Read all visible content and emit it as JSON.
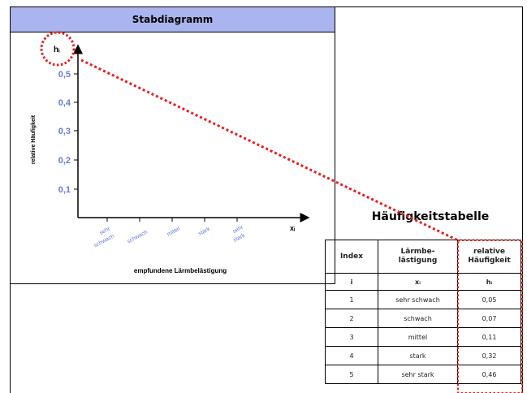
{
  "chart": {
    "title": "Stabdiagramm",
    "y_symbol": "hᵢ",
    "x_symbol": "xᵢ",
    "y_axis_label": "relative Häufigkeit",
    "x_axis_label": "empfundene Lärmbelästigung",
    "y_ticks": [
      "0,1",
      "0,2",
      "0,3",
      "0,4",
      "0,5"
    ],
    "x_ticks": [
      [
        "sehr",
        "schwach"
      ],
      [
        "schwach"
      ],
      [
        "mittel"
      ],
      [
        "stark"
      ],
      [
        "sehr",
        "stark"
      ]
    ],
    "tick_color": "#6a79e6",
    "highlight_color": "#ee1b1b"
  },
  "table": {
    "title": "Häufigkeitstabelle",
    "headers": {
      "index": "Index",
      "x_line1": "Lärmbe-",
      "x_line2": "lästigung",
      "h_line1": "relative",
      "h_line2": "Häufigkeit"
    },
    "symbols": {
      "index": "i",
      "x": "xᵢ",
      "h": "hᵢ"
    },
    "rows": [
      {
        "index": "1",
        "x": "sehr schwach",
        "h": "0,05"
      },
      {
        "index": "2",
        "x": "schwach",
        "h": "0,07"
      },
      {
        "index": "3",
        "x": "mittel",
        "h": "0,11"
      },
      {
        "index": "4",
        "x": "stark",
        "h": "0,32"
      },
      {
        "index": "5",
        "x": "sehr stark",
        "h": "0,46"
      }
    ]
  }
}
